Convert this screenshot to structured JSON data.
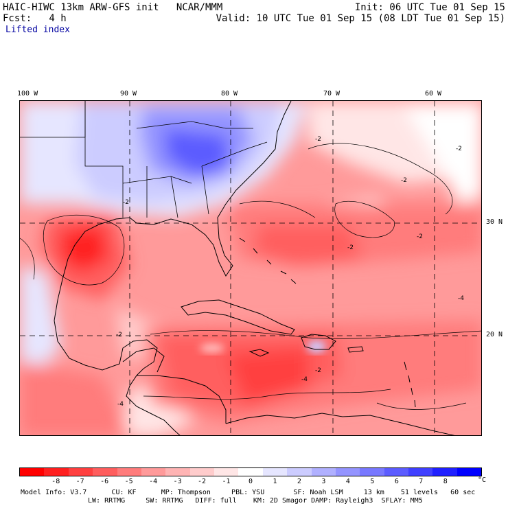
{
  "header": {
    "left_line1": "HAIC-HIWC 13km ARW-GFS init   NCAR/MMM",
    "left_line2": "Fcst:   4 h",
    "field_name": "Lifted index",
    "right_line1": "Init: 06 UTC Tue 01 Sep 15",
    "right_line2": "Valid: 10 UTC Tue 01 Sep 15 (08 LDT Tue 01 Sep 15)"
  },
  "map": {
    "lon_labels": [
      "100 W",
      "90 W",
      "80 W",
      "70 W",
      "60 W"
    ],
    "lat_labels": [
      "30 N",
      "20 N"
    ],
    "contour_labels": [
      "-2",
      "-2",
      "-2",
      "-2",
      "-2",
      "-2",
      "-4",
      "-4",
      "-4",
      "-2",
      "-2"
    ]
  },
  "colorbar": {
    "colors": [
      "#ff0000",
      "#ff2020",
      "#ff4040",
      "#ff5e5e",
      "#ff7c7c",
      "#ff9a9a",
      "#ffb4b4",
      "#ffcccc",
      "#ffe6e6",
      "#ffffff",
      "#e6e6ff",
      "#ccccff",
      "#b0b0ff",
      "#9494ff",
      "#7878ff",
      "#5c5cff",
      "#4040ff",
      "#2020ff",
      "#0000ff"
    ],
    "tick_labels": [
      "-8",
      "-7",
      "-6",
      "-5",
      "-4",
      "-3",
      "-2",
      "-1",
      "0",
      "1",
      "2",
      "3",
      "4",
      "5",
      "6",
      "7",
      "8"
    ],
    "unit": "°C"
  },
  "model_info": {
    "line1": "Model Info: V3.7      CU: KF      MP: Thompson     PBL: YSU       SF: Noah LSM     13 km    51 levels   60 sec",
    "line2": "LW: RRTMG     SW: RRTMG   DIFF: full    KM: 2D Smagor DAMP: Rayleigh3  SFLAY: MM5"
  }
}
